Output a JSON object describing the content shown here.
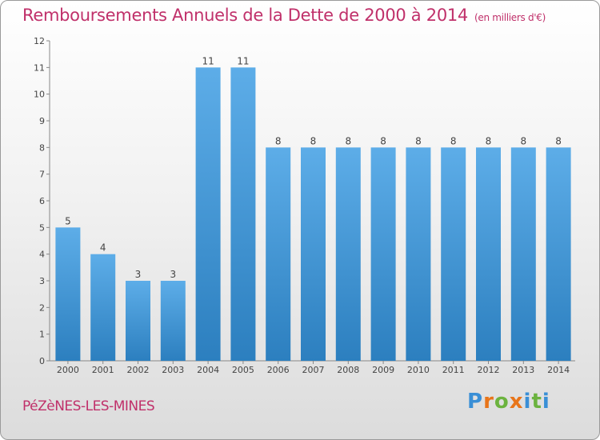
{
  "chart_data": {
    "type": "bar",
    "title": "Remboursements Annuels de la Dette de 2000 à 2014",
    "unit_note": "(en milliers d'€)",
    "categories": [
      "2000",
      "2001",
      "2002",
      "2003",
      "2004",
      "2005",
      "2006",
      "2007",
      "2008",
      "2009",
      "2010",
      "2011",
      "2012",
      "2013",
      "2014"
    ],
    "values": [
      5,
      4,
      3,
      3,
      11,
      11,
      8,
      8,
      8,
      8,
      8,
      8,
      8,
      8,
      8
    ],
    "data_labels": [
      "5",
      "4",
      "3",
      "3",
      "11",
      "11",
      "8",
      "8",
      "8",
      "8",
      "8",
      "8",
      "8",
      "8",
      "8"
    ],
    "ylim": [
      0,
      12
    ],
    "yticks": [
      "0",
      "1",
      "2",
      "3",
      "4",
      "5",
      "6",
      "7",
      "8",
      "9",
      "10",
      "11",
      "12"
    ],
    "grid": false,
    "legend": "none",
    "bar_color_top": "#5dade8",
    "bar_color_bottom": "#2c7fbf"
  },
  "footer": {
    "location": "PéZèNES-LES-MINES",
    "brand": "Proxiti"
  },
  "colors": {
    "title": "#c0306a",
    "brand_letters": [
      "#3a8fd6",
      "#e8751a",
      "#6cb33f",
      "#e8751a",
      "#3a8fd6",
      "#6cb33f",
      "#3a8fd6"
    ]
  }
}
